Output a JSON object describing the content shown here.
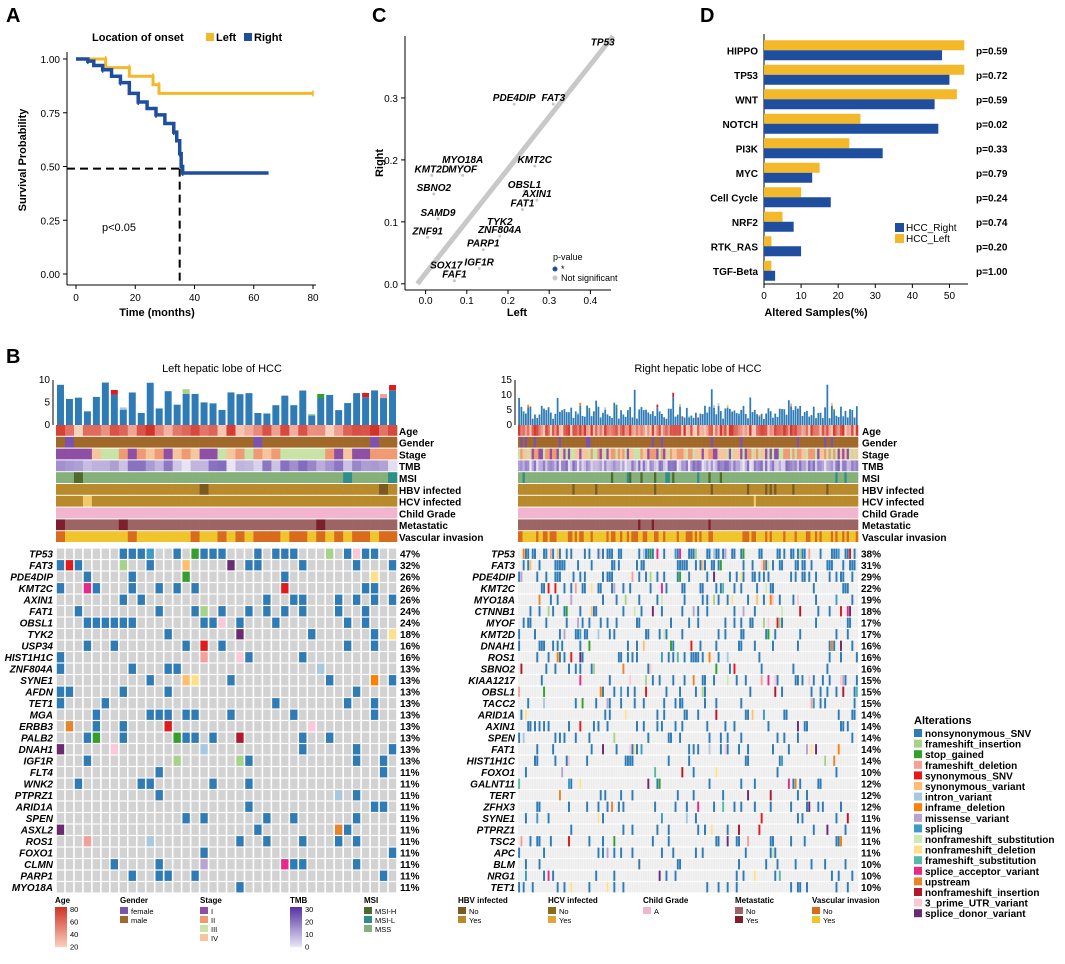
{
  "panel_letters": {
    "a": "A",
    "b": "B",
    "c": "C",
    "d": "D"
  },
  "colors": {
    "left": "#F4B92A",
    "right": "#1F4E9F",
    "grey": "#C8C8C8",
    "dark": "#222222"
  },
  "chart_data": [
    {
      "id": "A",
      "type": "line",
      "legend_title": "Location of onset",
      "series_names": [
        "Left",
        "Right"
      ],
      "xlabel": "Time (months)",
      "ylabel": "Survival Probability",
      "xticks": [
        "0",
        "20",
        "40",
        "60",
        "80"
      ],
      "xlim": [
        0,
        80
      ],
      "yticks": [
        "0.00",
        "0.25",
        "0.50",
        "0.75",
        "1.00"
      ],
      "ylim": [
        0,
        1
      ],
      "annotation": "p<0.05",
      "series": [
        {
          "name": "Left",
          "points": [
            [
              0,
              1
            ],
            [
              10,
              1
            ],
            [
              10,
              0.96
            ],
            [
              18,
              0.96
            ],
            [
              18,
              0.92
            ],
            [
              26,
              0.92
            ],
            [
              26,
              0.88
            ],
            [
              28,
              0.88
            ],
            [
              28,
              0.84
            ],
            [
              80,
              0.84
            ]
          ]
        },
        {
          "name": "Right",
          "points": [
            [
              0,
              1
            ],
            [
              4,
              0.99
            ],
            [
              6,
              0.97
            ],
            [
              9,
              0.95
            ],
            [
              12,
              0.92
            ],
            [
              15,
              0.89
            ],
            [
              18,
              0.84
            ],
            [
              21,
              0.8
            ],
            [
              24,
              0.77
            ],
            [
              27,
              0.74
            ],
            [
              30,
              0.7
            ],
            [
              33,
              0.66
            ],
            [
              34,
              0.62
            ],
            [
              35,
              0.56
            ],
            [
              35.5,
              0.5
            ],
            [
              36,
              0.47
            ],
            [
              65,
              0.47
            ]
          ]
        }
      ],
      "median_x": 35,
      "median_y": 0.49
    },
    {
      "id": "C",
      "type": "scatter",
      "xlabel": "Left",
      "ylabel": "Right",
      "xticks": [
        "0.0",
        "0.1",
        "0.2",
        "0.3",
        "0.4"
      ],
      "xlim": [
        -0.05,
        0.45
      ],
      "yticks": [
        "0.0",
        "0.1",
        "0.2",
        "0.3"
      ],
      "ylim": [
        -0.01,
        0.4
      ],
      "legend_title": "p-value",
      "legend_items": [
        "*",
        "Not significant"
      ],
      "genes": [
        {
          "name": "TP53",
          "x": 0.43,
          "y": 0.38
        },
        {
          "name": "PDE4DIP",
          "x": 0.215,
          "y": 0.29
        },
        {
          "name": "FAT3",
          "x": 0.31,
          "y": 0.29
        },
        {
          "name": "MYO18A",
          "x": 0.09,
          "y": 0.19
        },
        {
          "name": "KMT2C",
          "x": 0.265,
          "y": 0.19
        },
        {
          "name": "KMT2D",
          "x": 0.015,
          "y": 0.175
        },
        {
          "name": "MYOF",
          "x": 0.09,
          "y": 0.175
        },
        {
          "name": "SBNO2",
          "x": 0.02,
          "y": 0.145
        },
        {
          "name": "OBSL1",
          "x": 0.24,
          "y": 0.15
        },
        {
          "name": "AXIN1",
          "x": 0.27,
          "y": 0.135
        },
        {
          "name": "FAT1",
          "x": 0.235,
          "y": 0.12
        },
        {
          "name": "SAMD9",
          "x": 0.03,
          "y": 0.105
        },
        {
          "name": "TYK2",
          "x": 0.18,
          "y": 0.09
        },
        {
          "name": "ZNF91",
          "x": 0.005,
          "y": 0.075
        },
        {
          "name": "ZNF804A",
          "x": 0.18,
          "y": 0.077
        },
        {
          "name": "PARP1",
          "x": 0.14,
          "y": 0.055
        },
        {
          "name": "IGF1R",
          "x": 0.13,
          "y": 0.025
        },
        {
          "name": "SOX17",
          "x": 0.05,
          "y": 0.02
        },
        {
          "name": "FAF1",
          "x": 0.07,
          "y": 0.005
        }
      ]
    },
    {
      "id": "D",
      "type": "bar",
      "orientation": "horizontal",
      "categories": [
        "HIPPO",
        "TP53",
        "WNT",
        "NOTCH",
        "PI3K",
        "MYC",
        "Cell Cycle",
        "NRF2",
        "RTK_RAS",
        "TGF-Beta"
      ],
      "series": [
        {
          "name": "HCC_Right",
          "values": [
            48,
            50,
            46,
            47,
            32,
            13,
            18,
            8,
            10,
            3
          ]
        },
        {
          "name": "HCC_Left",
          "values": [
            54,
            54,
            52,
            26,
            23,
            15,
            10,
            5,
            2,
            2
          ]
        }
      ],
      "pvalues": [
        "p=0.59",
        "p=0.72",
        "p=0.59",
        "p=0.02",
        "p=0.33",
        "p=0.79",
        "p=0.24",
        "p=0.74",
        "p=0.20",
        "p=1.00"
      ],
      "xlabel": "Altered Samples(%)",
      "xticks": [
        "0",
        "10",
        "20",
        "30",
        "40",
        "50"
      ],
      "xlim": [
        0,
        55
      ],
      "legend": [
        "HCC_Right",
        "HCC_Left"
      ]
    }
  ],
  "panel_b": {
    "left_title": "Left hepatic lobe of HCC",
    "right_title": "Right hepatic lobe of HCC",
    "left_tmb_ticks": [
      "10",
      "5",
      "0"
    ],
    "right_tmb_ticks": [
      "15",
      "10",
      "5",
      "0"
    ],
    "clinical_tracks": [
      "Age",
      "Gender",
      "Stage",
      "TMB",
      "MSI",
      "HBV infected",
      "HCV infected",
      "Child Grade",
      "Metastatic",
      "Vascular invasion"
    ],
    "left_genes": [
      "TP53",
      "FAT3",
      "PDE4DIP",
      "KMT2C",
      "AXIN1",
      "FAT1",
      "OBSL1",
      "TYK2",
      "USP34",
      "HIST1H1C",
      "ZNF804A",
      "SYNE1",
      "AFDN",
      "TET1",
      "MGA",
      "ERBB3",
      "PALB2",
      "DNAH1",
      "IGF1R",
      "FLT4",
      "WNK2",
      "PTPRZ1",
      "ARID1A",
      "SPEN",
      "ASXL2",
      "ROS1",
      "FOXO1",
      "CLMN",
      "PARP1",
      "MYO18A"
    ],
    "left_pcts": [
      "47%",
      "32%",
      "26%",
      "26%",
      "26%",
      "24%",
      "24%",
      "18%",
      "16%",
      "16%",
      "13%",
      "13%",
      "13%",
      "13%",
      "13%",
      "13%",
      "13%",
      "13%",
      "13%",
      "11%",
      "11%",
      "11%",
      "11%",
      "11%",
      "11%",
      "11%",
      "11%",
      "11%",
      "11%",
      "11%"
    ],
    "right_genes": [
      "TP53",
      "FAT3",
      "PDE4DIP",
      "KMT2C",
      "MYO18A",
      "CTNNB1",
      "MYOF",
      "KMT2D",
      "DNAH1",
      "ROS1",
      "SBNO2",
      "KIAA1217",
      "OBSL1",
      "TACC2",
      "ARID1A",
      "AXIN1",
      "SPEN",
      "FAT1",
      "HIST1H1C",
      "FOXO1",
      "GALNT11",
      "TERT",
      "ZFHX3",
      "SYNE1",
      "PTPRZ1",
      "TSC2",
      "APC",
      "BLM",
      "NRG1",
      "TET1"
    ],
    "right_pcts": [
      "38%",
      "31%",
      "29%",
      "22%",
      "19%",
      "18%",
      "17%",
      "17%",
      "16%",
      "16%",
      "16%",
      "15%",
      "15%",
      "15%",
      "14%",
      "14%",
      "14%",
      "14%",
      "14%",
      "10%",
      "12%",
      "12%",
      "12%",
      "11%",
      "11%",
      "11%",
      "11%",
      "10%",
      "10%",
      "10%"
    ],
    "alterations_title": "Alterations",
    "alterations": [
      {
        "label": "nonsynonymous_SNV",
        "color": "#2F7BB6"
      },
      {
        "label": "frameshift_insertion",
        "color": "#A7D389"
      },
      {
        "label": "stop_gained",
        "color": "#33A02C"
      },
      {
        "label": "frameshift_deletion",
        "color": "#F4A09A"
      },
      {
        "label": "synonymous_SNV",
        "color": "#E31A1C"
      },
      {
        "label": "synonymous_variant",
        "color": "#FDBF6F"
      },
      {
        "label": "intron_variant",
        "color": "#A6C8E0"
      },
      {
        "label": "inframe_deletion",
        "color": "#FF7F00"
      },
      {
        "label": "missense_variant",
        "color": "#B9A3D0"
      },
      {
        "label": "splicing",
        "color": "#3E9BC8"
      },
      {
        "label": "nonframeshift_substitution",
        "color": "#CFE8B4"
      },
      {
        "label": "nonframeshift_deletion",
        "color": "#FFE08A"
      },
      {
        "label": "frameshift_substitution",
        "color": "#58B7A6"
      },
      {
        "label": "splice_acceptor_variant",
        "color": "#E7298A"
      },
      {
        "label": "upstream",
        "color": "#E6852E"
      },
      {
        "label": "nonframeshift_insertion",
        "color": "#B2182B"
      },
      {
        "label": "3_prime_UTR_variant",
        "color": "#F9C9D7"
      },
      {
        "label": "splice_donor_variant",
        "color": "#6A2C70"
      }
    ],
    "legends": [
      {
        "title": "Age",
        "type": "gradient",
        "labels": [
          "80",
          "60",
          "40",
          "20"
        ]
      },
      {
        "title": "Gender",
        "items": [
          {
            "label": "female",
            "color": "#7B52AE"
          },
          {
            "label": "male",
            "color": "#A0692A"
          }
        ]
      },
      {
        "title": "Stage",
        "items": [
          {
            "label": "I",
            "color": "#8E4FA5"
          },
          {
            "label": "II",
            "color": "#EF9A73"
          },
          {
            "label": "III",
            "color": "#C9E3A6"
          },
          {
            "label": "IV",
            "color": "#F6C59C"
          }
        ]
      },
      {
        "title": "TMB",
        "type": "gradient",
        "labels": [
          "30",
          "20",
          "10",
          "0"
        ]
      },
      {
        "title": "MSI",
        "items": [
          {
            "label": "MSI-H",
            "color": "#4D6B2A"
          },
          {
            "label": "MSI-L",
            "color": "#2E8E8A"
          },
          {
            "label": "MSS",
            "color": "#86B07A"
          }
        ]
      },
      {
        "title": "HBV infected",
        "items": [
          {
            "label": "No",
            "color": "#7A5A1F"
          },
          {
            "label": "Yes",
            "color": "#B88A2C"
          }
        ]
      },
      {
        "title": "HCV infected",
        "items": [
          {
            "label": "No",
            "color": "#8A6B1A"
          },
          {
            "label": "Yes",
            "color": "#E3A53A"
          }
        ]
      },
      {
        "title": "Child Grade",
        "items": [
          {
            "label": "A",
            "color": "#F2B5CF"
          }
        ]
      },
      {
        "title": "Metastatic",
        "items": [
          {
            "label": "No",
            "color": "#9C6464"
          },
          {
            "label": "Yes",
            "color": "#7E1F2E"
          }
        ]
      },
      {
        "title": "Vascular invasion",
        "items": [
          {
            "label": "No",
            "color": "#D96B1C"
          },
          {
            "label": "Yes",
            "color": "#F0C52B"
          }
        ]
      }
    ]
  }
}
